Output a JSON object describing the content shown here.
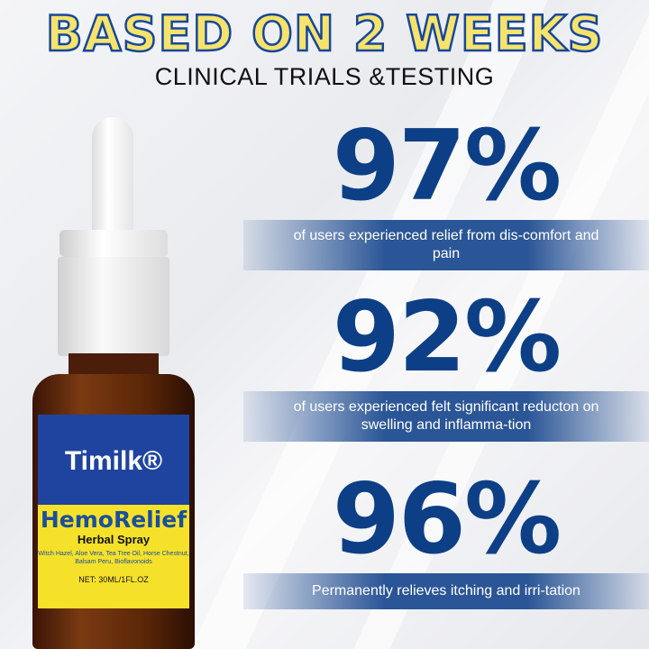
{
  "header": {
    "title": "BASED ON 2 WEEKS",
    "subtitle": "CLINICAL TRIALS &TESTING"
  },
  "stats": [
    {
      "value": "97%",
      "description": "of users experienced relief from dis-comfort and pain"
    },
    {
      "value": "92%",
      "description": "of users experienced felt significant reducton on swelling and inflamma-tion"
    },
    {
      "value": "96%",
      "description": "Permanently relieves itching and irri-tation"
    }
  ],
  "product": {
    "brand": "Timilk®",
    "name": "HemoRelief",
    "type": "Herbal Spray",
    "ingredients": "Witch Hazel, Aloe Vera, Tea Tree Oil, Horse Chestnut, Balsam Peru, Bioflavonoids",
    "net": "NET: 30ML/1FL.OZ"
  },
  "colors": {
    "title_fill": "#f5e36b",
    "title_outline": "#17479a",
    "stat": "#0d3f86",
    "band": "#2a5596"
  }
}
